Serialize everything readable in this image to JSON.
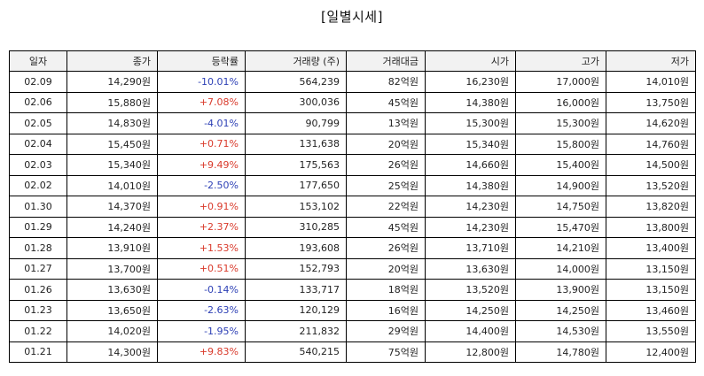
{
  "title": "[일별시세]",
  "columns": [
    "일자",
    "종가",
    "등락률",
    "거래량 (주)",
    "거래대금",
    "시가",
    "고가",
    "저가"
  ],
  "rows": [
    {
      "date": "02.09",
      "close": "14,290원",
      "change": "-10.01%",
      "dir": "down",
      "volume": "564,239",
      "amount": "82억원",
      "open": "16,230원",
      "high": "17,000원",
      "low": "14,010원"
    },
    {
      "date": "02.06",
      "close": "15,880원",
      "change": "+7.08%",
      "dir": "up",
      "volume": "300,036",
      "amount": "45억원",
      "open": "14,380원",
      "high": "16,000원",
      "low": "13,750원"
    },
    {
      "date": "02.05",
      "close": "14,830원",
      "change": "-4.01%",
      "dir": "down",
      "volume": "90,799",
      "amount": "13억원",
      "open": "15,300원",
      "high": "15,300원",
      "low": "14,620원"
    },
    {
      "date": "02.04",
      "close": "15,450원",
      "change": "+0.71%",
      "dir": "up",
      "volume": "131,638",
      "amount": "20억원",
      "open": "15,340원",
      "high": "15,800원",
      "low": "14,760원"
    },
    {
      "date": "02.03",
      "close": "15,340원",
      "change": "+9.49%",
      "dir": "up",
      "volume": "175,563",
      "amount": "26억원",
      "open": "14,660원",
      "high": "15,400원",
      "low": "14,500원"
    },
    {
      "date": "02.02",
      "close": "14,010원",
      "change": "-2.50%",
      "dir": "down",
      "volume": "177,650",
      "amount": "25억원",
      "open": "14,380원",
      "high": "14,900원",
      "low": "13,520원"
    },
    {
      "date": "01.30",
      "close": "14,370원",
      "change": "+0.91%",
      "dir": "up",
      "volume": "153,102",
      "amount": "22억원",
      "open": "14,230원",
      "high": "14,750원",
      "low": "13,820원"
    },
    {
      "date": "01.29",
      "close": "14,240원",
      "change": "+2.37%",
      "dir": "up",
      "volume": "310,285",
      "amount": "45억원",
      "open": "14,230원",
      "high": "15,470원",
      "low": "13,800원"
    },
    {
      "date": "01.28",
      "close": "13,910원",
      "change": "+1.53%",
      "dir": "up",
      "volume": "193,608",
      "amount": "26억원",
      "open": "13,710원",
      "high": "14,210원",
      "low": "13,400원"
    },
    {
      "date": "01.27",
      "close": "13,700원",
      "change": "+0.51%",
      "dir": "up",
      "volume": "152,793",
      "amount": "20억원",
      "open": "13,630원",
      "high": "14,000원",
      "low": "13,150원"
    },
    {
      "date": "01.26",
      "close": "13,630원",
      "change": "-0.14%",
      "dir": "down",
      "volume": "133,717",
      "amount": "18억원",
      "open": "13,520원",
      "high": "13,900원",
      "low": "13,150원"
    },
    {
      "date": "01.23",
      "close": "13,650원",
      "change": "-2.63%",
      "dir": "down",
      "volume": "120,129",
      "amount": "16억원",
      "open": "14,250원",
      "high": "14,250원",
      "low": "13,460원"
    },
    {
      "date": "01.22",
      "close": "14,020원",
      "change": "-1.95%",
      "dir": "down",
      "volume": "211,832",
      "amount": "29억원",
      "open": "14,400원",
      "high": "14,530원",
      "low": "13,550원"
    },
    {
      "date": "01.21",
      "close": "14,300원",
      "change": "+9.83%",
      "dir": "up",
      "volume": "540,215",
      "amount": "75억원",
      "open": "12,800원",
      "high": "14,780원",
      "low": "12,400원"
    }
  ],
  "colors": {
    "up": "#d93a2b",
    "down": "#2c3fb5",
    "header_bg": "#f2f2f2",
    "border": "#000000"
  }
}
